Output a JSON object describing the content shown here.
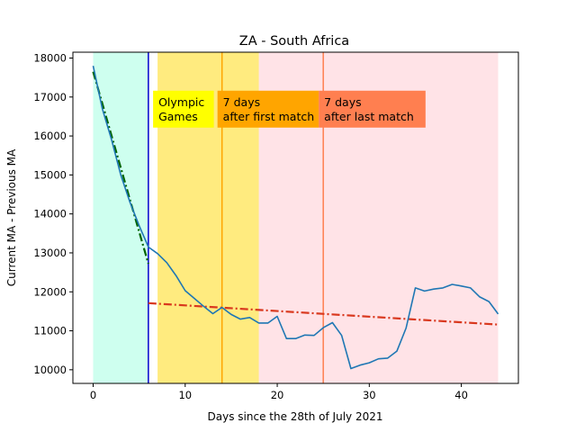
{
  "chart_data": {
    "type": "line",
    "title": "ZA - South Africa",
    "xlabel": "Days since the 28th of July 2021",
    "ylabel": "Current MA - Previous MA",
    "xlim": [
      -2.2,
      46.2
    ],
    "ylim": [
      9650,
      18150
    ],
    "xticks": [
      0,
      10,
      20,
      30,
      40
    ],
    "yticks": [
      10000,
      11000,
      12000,
      13000,
      14000,
      15000,
      16000,
      17000,
      18000
    ],
    "grid": false,
    "colors": {
      "series": "#1f77b4",
      "fit_before": "#006400",
      "fit_after": "#d9381e",
      "first_vline": "#0000cd",
      "olympic_vline": "#ffa500",
      "last_vline": "#ff7f50",
      "region_pre": "#7fffd4",
      "region_olympics": "#ffd700",
      "region_post": "#ffb6c1",
      "box_olympic": "#ffff00",
      "box_first": "#ffa500",
      "box_last": "#ff7f50"
    },
    "regions": [
      {
        "x0": 0,
        "x1": 6,
        "color_key": "region_pre",
        "opacity": 0.38
      },
      {
        "x0": 7,
        "x1": 18,
        "color_key": "region_olympics",
        "opacity": 0.5
      },
      {
        "x0": 18,
        "x1": 44,
        "color_key": "region_post",
        "opacity": 0.38
      }
    ],
    "vlines": [
      {
        "x": 6,
        "color_key": "first_vline"
      },
      {
        "x": 14,
        "color_key": "olympic_vline"
      },
      {
        "x": 25,
        "color_key": "last_vline"
      }
    ],
    "annotations": [
      {
        "lines": [
          "Olympic",
          "Games"
        ],
        "x": 7,
        "y": 16700,
        "color_key": "box_olympic",
        "box_w_days": 6.6
      },
      {
        "lines": [
          "7 days",
          "after first match"
        ],
        "x": 14,
        "y": 16700,
        "color_key": "box_first",
        "box_w_days": 11.0
      },
      {
        "lines": [
          "7 days",
          "after last match"
        ],
        "x": 25,
        "y": 16700,
        "color_key": "box_last",
        "box_w_days": 11.6
      }
    ],
    "series": [
      {
        "x": [
          0,
          1,
          2,
          3,
          4,
          5,
          6,
          7,
          8,
          9,
          10,
          11,
          12,
          13,
          14,
          15,
          16,
          17,
          18,
          19,
          20,
          21,
          22,
          23,
          24,
          25,
          26,
          27,
          28,
          29,
          30,
          31,
          32,
          33,
          34,
          35,
          36,
          37,
          38,
          39,
          40,
          41,
          42,
          43,
          44
        ],
        "values": [
          17800,
          16700,
          15900,
          15000,
          14300,
          13700,
          13150,
          12980,
          12750,
          12420,
          12030,
          11830,
          11630,
          11440,
          11600,
          11420,
          11300,
          11340,
          11200,
          11200,
          11370,
          10800,
          10800,
          10890,
          10880,
          11080,
          11210,
          10880,
          10030,
          10120,
          10180,
          10280,
          10300,
          10480,
          11070,
          12100,
          12020,
          12070,
          12100,
          12190,
          12150,
          12100,
          11870,
          11750,
          11430
        ],
        "color_key": "series"
      }
    ],
    "fits": [
      {
        "x": [
          0,
          6
        ],
        "values": [
          17650,
          12720
        ],
        "color_key": "fit_before"
      },
      {
        "x": [
          6,
          44
        ],
        "values": [
          11710,
          11160
        ],
        "color_key": "fit_after"
      }
    ]
  }
}
